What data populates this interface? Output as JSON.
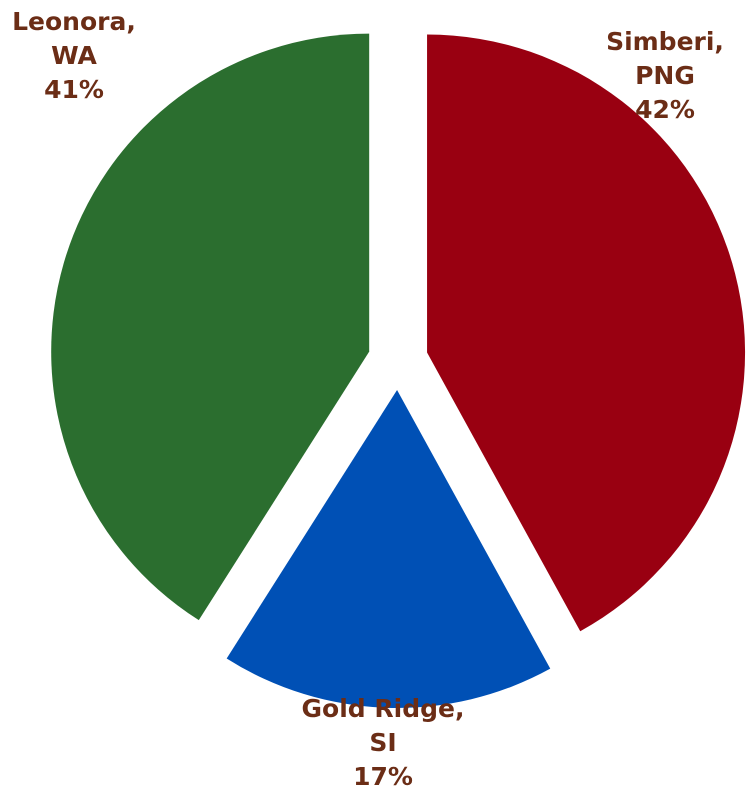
{
  "chart_data": {
    "type": "pie",
    "title": "",
    "label_color": "#6b2d16",
    "slices": [
      {
        "name_lines": [
          "Simberi,",
          "PNG"
        ],
        "value": 42,
        "label": "42%",
        "color": "#990011"
      },
      {
        "name_lines": [
          "Gold Ridge,",
          "SI"
        ],
        "value": 17,
        "label": "17%",
        "color": "#0050b5"
      },
      {
        "name_lines": [
          "Leonora,",
          "WA"
        ],
        "value": 41,
        "label": "41%",
        "color": "#2b6e2f"
      }
    ]
  }
}
